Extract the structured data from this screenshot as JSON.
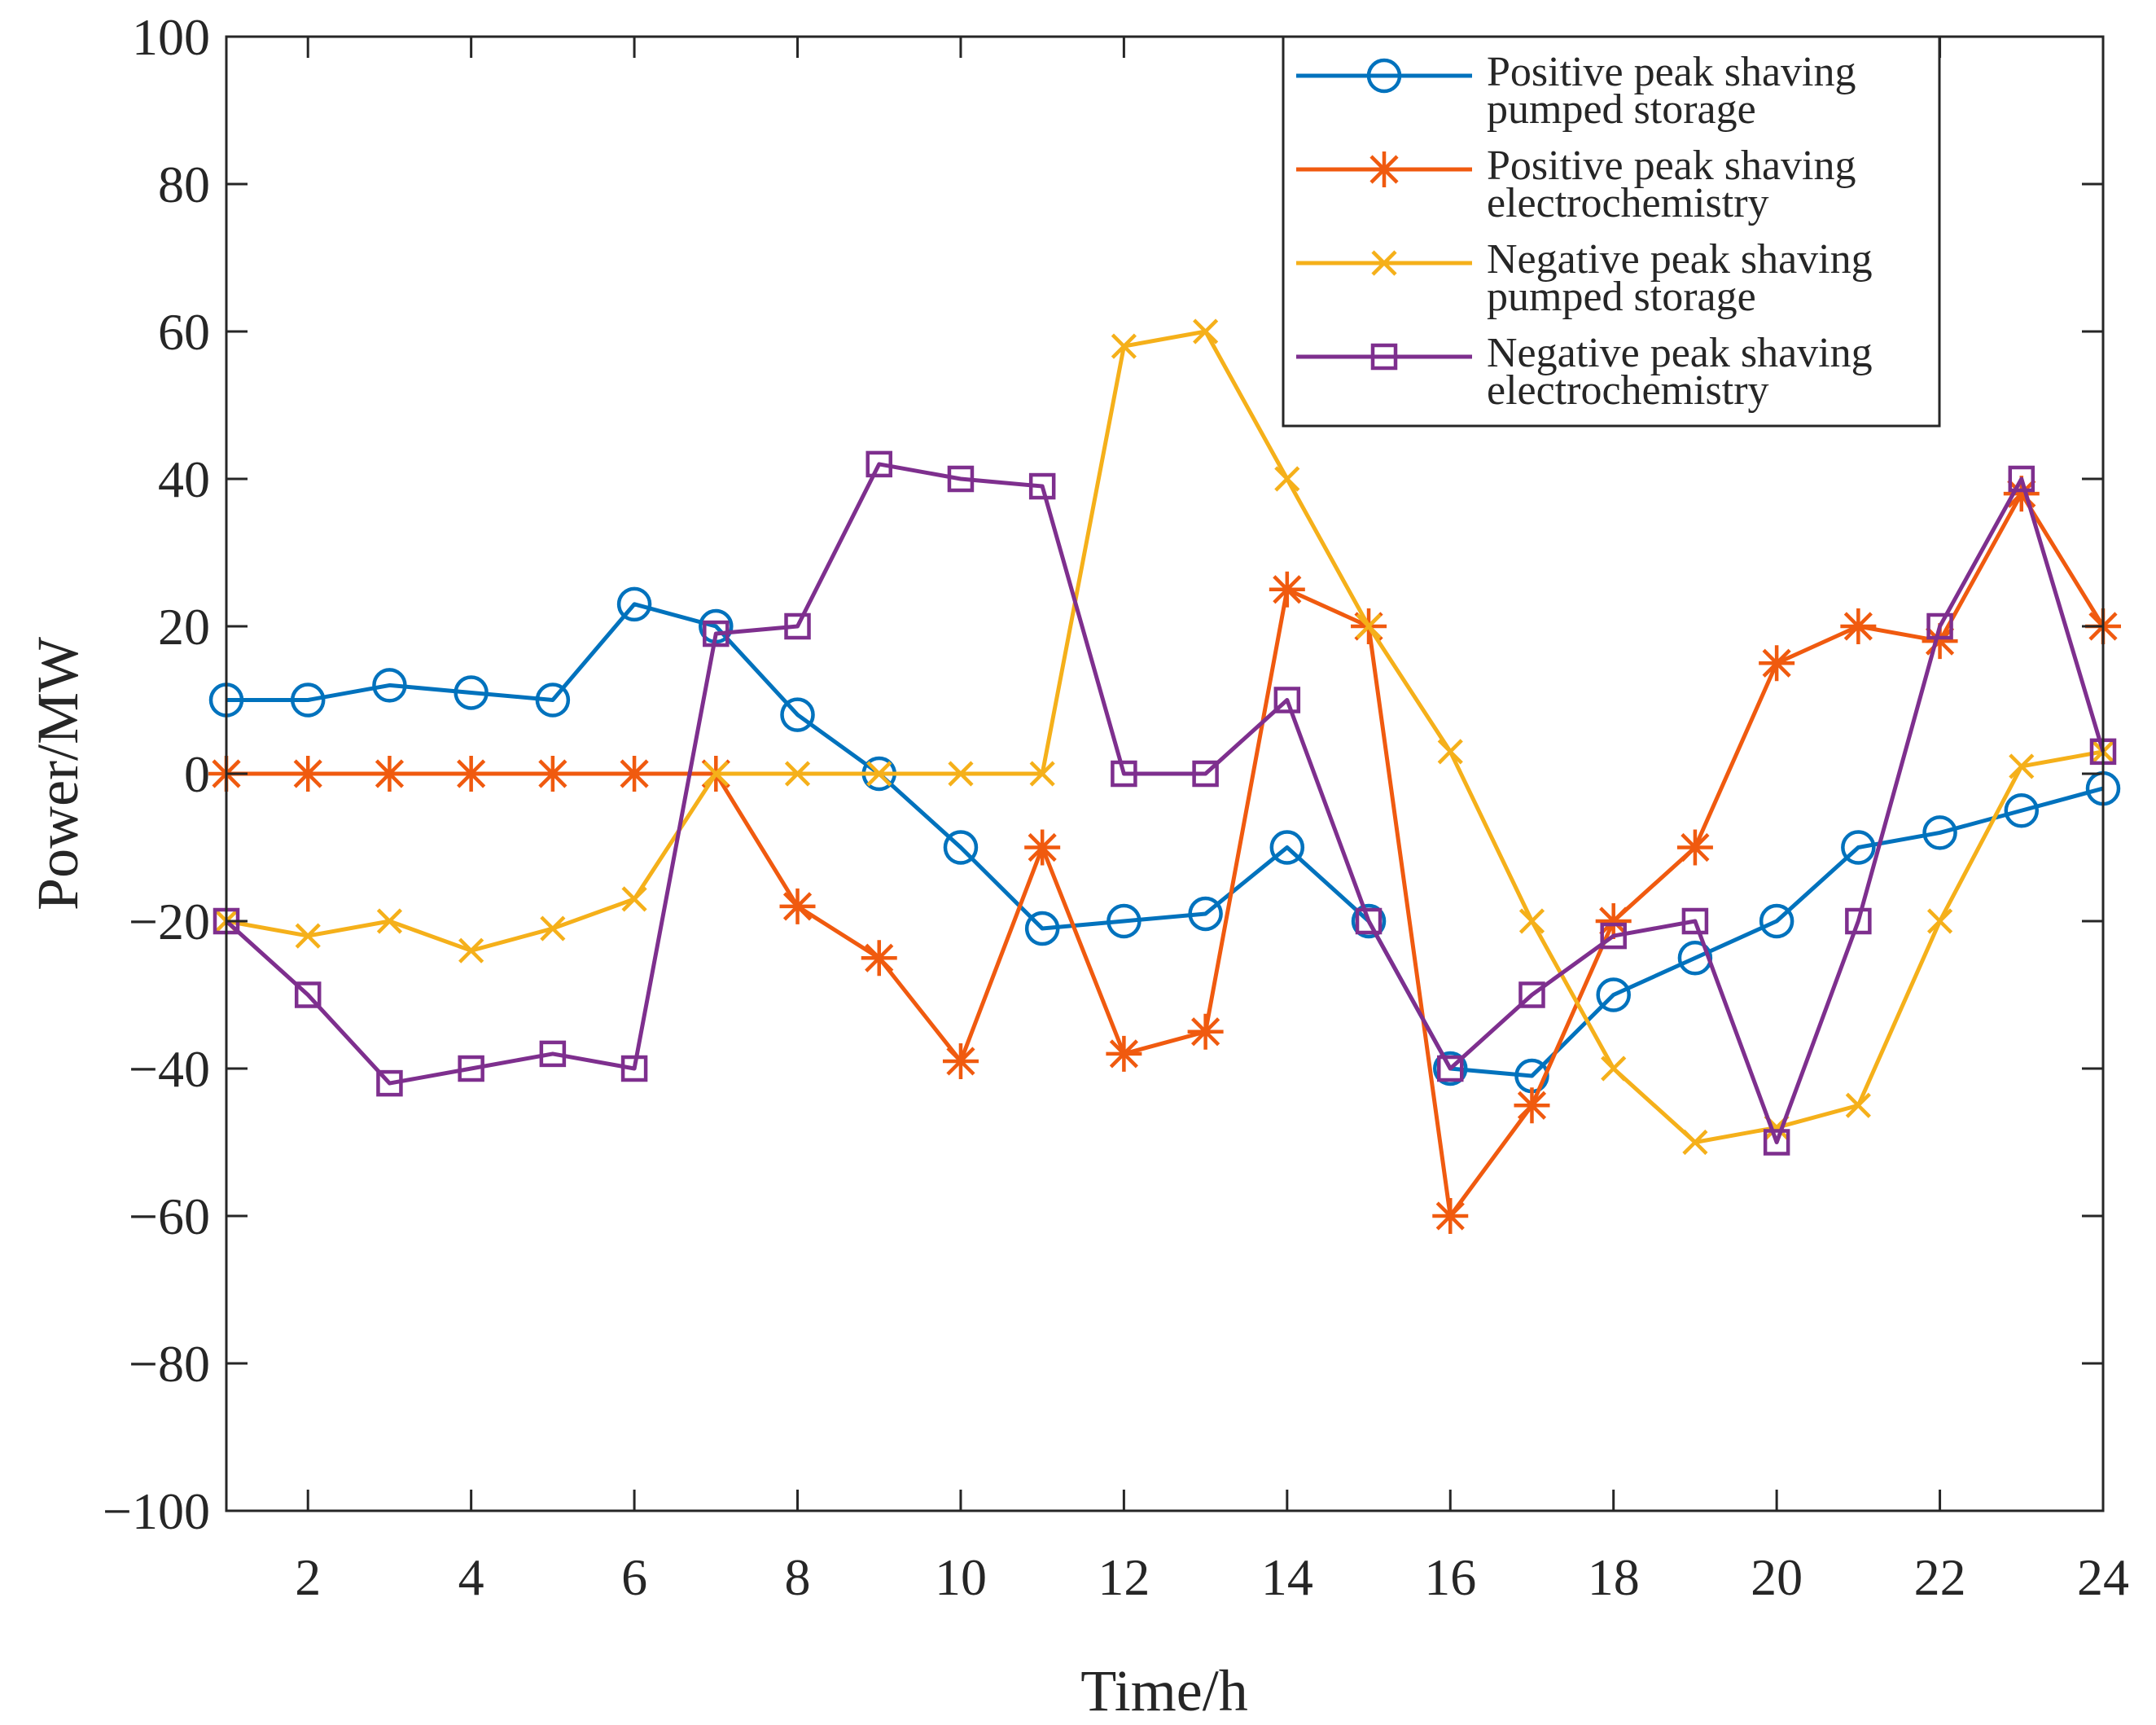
{
  "chart_data": {
    "type": "line",
    "title": "",
    "xlabel": "Time/h",
    "ylabel": "Power/MW",
    "xlim": [
      1,
      24
    ],
    "ylim": [
      -100,
      100
    ],
    "xticks": [
      2,
      4,
      6,
      8,
      10,
      12,
      14,
      16,
      18,
      20,
      22,
      24
    ],
    "xtick_labels": [
      "2",
      "4",
      "6",
      "8",
      "10",
      "12",
      "14",
      "16",
      "18",
      "20",
      "22",
      "24"
    ],
    "yticks": [
      -100,
      -80,
      -60,
      -40,
      -20,
      0,
      20,
      40,
      60,
      80,
      100
    ],
    "ytick_labels": [
      "−100",
      "−80",
      "−60",
      "−40",
      "−20",
      "0",
      "20",
      "40",
      "60",
      "80",
      "100"
    ],
    "grid": false,
    "legend_position": "top-right",
    "x": [
      1,
      2,
      3,
      4,
      5,
      6,
      7,
      8,
      9,
      10,
      11,
      12,
      13,
      14,
      15,
      16,
      17,
      18,
      19,
      20,
      21,
      22,
      23,
      24
    ],
    "series": [
      {
        "name": "Positive peak shaving pumped storage",
        "legend_lines": [
          "Positive peak shaving",
          "pumped storage"
        ],
        "color": "#0072BD",
        "marker": "circle",
        "values": [
          10,
          10,
          12,
          11,
          10,
          23,
          20,
          8,
          0,
          -10,
          -21,
          -20,
          -19,
          -10,
          -20,
          -40,
          -41,
          -30,
          -25,
          -20,
          -10,
          -8,
          -5,
          -2
        ]
      },
      {
        "name": "Positive peak shaving electrochemistry",
        "legend_lines": [
          "Positive peak shaving",
          "electrochemistry"
        ],
        "color": "#F05A0F",
        "marker": "asterisk",
        "values": [
          0,
          0,
          0,
          0,
          0,
          0,
          0,
          -18,
          -25,
          -39,
          -10,
          -38,
          -35,
          25,
          20,
          -60,
          -45,
          -20,
          -10,
          15,
          20,
          18,
          38,
          20
        ]
      },
      {
        "name": "Negative peak shaving pumped storage",
        "legend_lines": [
          "Negative peak shaving",
          "pumped storage"
        ],
        "color": "#F5B01A",
        "marker": "x",
        "values": [
          -20,
          -22,
          -20,
          -24,
          -21,
          -17,
          0,
          0,
          0,
          0,
          0,
          58,
          60,
          40,
          20,
          3,
          -20,
          -40,
          -50,
          -48,
          -45,
          -20,
          1,
          3
        ]
      },
      {
        "name": "Negative peak shaving electrochemistry",
        "legend_lines": [
          "Negative peak shaving",
          "electrochemistry"
        ],
        "color": "#7E2F8E",
        "marker": "square",
        "values": [
          -20,
          -30,
          -42,
          -40,
          -38,
          -40,
          19,
          20,
          42,
          40,
          39,
          0,
          0,
          10,
          -20,
          -40,
          -30,
          -22,
          -20,
          -50,
          -20,
          20,
          40,
          3
        ]
      }
    ]
  }
}
